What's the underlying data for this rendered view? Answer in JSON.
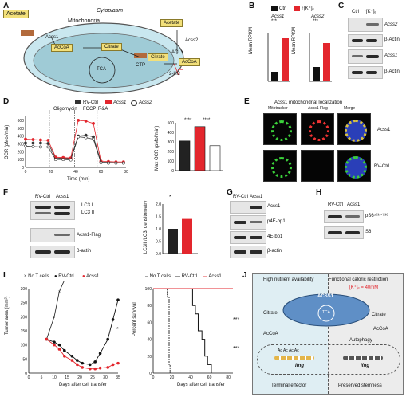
{
  "panels": {
    "A": {
      "label": "A",
      "cytoplasm": "Cytoplasm",
      "mitochondria": "Mitochondria",
      "acetate_out": "Acetate",
      "acss1": "Acss1",
      "accoa_mito": "AcCoA",
      "citrate_mito": "Citrate",
      "tca": "TCA",
      "ctp": "CTP",
      "acetate_cyto": "Acetate",
      "acss2": "Acss2",
      "citrate_cyto": "Citrate",
      "acly": "ACLY",
      "accoa_cyto": "AcCoA",
      "hc": "2-HC"
    },
    "B": {
      "label": "B",
      "legend_ctrl": "Ctrl",
      "legend_k": "↑[K⁺]ₑ",
      "sig1": "***",
      "sig2": "***",
      "ylabel": "Mean RPKM",
      "acss1": "Acss1",
      "acss2": "Acss2"
    },
    "C": {
      "label": "C",
      "col_ctrl": "Ctrl",
      "col_k": "↑[K⁺]ₑ",
      "rows": [
        "Acss2",
        "β-Actin",
        "Acss1",
        "β-Actin"
      ]
    },
    "D": {
      "label": "D",
      "legend": [
        "RV-Ctrl",
        "Acss1",
        "Acss2"
      ],
      "oligomycin": "Oligomycin",
      "fccp": "FCCP",
      "ra": "R&A",
      "ylabel": "OCR (pMol/min)",
      "xlabel": "Time (min)",
      "bar_ylabel": "Max OCR (pMol/min)",
      "sig1": "****",
      "sig2": "****",
      "yticks": [
        "0",
        "100",
        "200",
        "300",
        "400",
        "500",
        "600"
      ],
      "xticks": [
        "0",
        "20",
        "40",
        "60",
        "80"
      ],
      "bar_yticks": [
        "0",
        "100",
        "200",
        "300",
        "400",
        "500"
      ]
    },
    "E": {
      "label": "E",
      "title": "Acss1 mitochondrial localization",
      "col1": "Mitotracker",
      "col2": "Acss1 Flag",
      "col3": "Merge",
      "row1": "Acss1",
      "row2": "RV-Ctrl"
    },
    "F": {
      "label": "F",
      "col1": "RV-Ctrl",
      "col2": "Acss1",
      "lc3i": "LC3 I",
      "lc3ii": "LC3 II",
      "flag": "Acss1-Flag",
      "actin": "β-actin",
      "ylabel": "LC3II /LC3I densitometry",
      "sig": "*",
      "yticks": [
        "0.0",
        "0.5",
        "1.0",
        "1.5",
        "2.0"
      ]
    },
    "G": {
      "label": "G",
      "col1": "RV-Ctrl",
      "col2": "Acss1",
      "rows": [
        "Acss1",
        "p4E-bp1",
        "4E-bp1",
        "β-actin"
      ]
    },
    "H": {
      "label": "H",
      "col1": "RV-Ctrl",
      "col2": "Acss1",
      "rows": [
        "pS6⁵²³⁵ᐟ²³⁶",
        "S6"
      ]
    },
    "I": {
      "label": "I",
      "legend": [
        "No T cells",
        "RV-Ctrl",
        "Acss1"
      ],
      "ylabel": "Tumor area (mm²)",
      "xlabel": "Days after cell transfer",
      "yticks": [
        "0",
        "50",
        "100",
        "150",
        "200",
        "250",
        "300"
      ],
      "xticks": [
        "0",
        "5",
        "10",
        "15",
        "20",
        "25",
        "30",
        "35"
      ],
      "sig": "*",
      "surv_legend": [
        "No T cells",
        "RV-Ctrl",
        "Acss1"
      ],
      "surv_ylabel": "Percent survival",
      "surv_xlabel": "Days after cell transfer",
      "surv_yticks": [
        "0",
        "20",
        "40",
        "60",
        "80",
        "100"
      ],
      "surv_xticks": [
        "0",
        "20",
        "40",
        "60",
        "80"
      ],
      "surv_sig1": "***",
      "surv_sig2": "***"
    },
    "J": {
      "label": "J",
      "left_title": "High nutrient availability",
      "right_title": "Functional caloric restriction",
      "k_label": "[K⁺]ₑ = 40mM",
      "acss1": "ACSS1",
      "tca": "TCA",
      "citrate_l": "Citrate",
      "accoa_l": "AcCoA",
      "citrate_r": "Citrate",
      "accoa_r": "AcCoA",
      "autophagy": "Autophagy",
      "ac": "Ac",
      "ifng_l": "Ifng",
      "ifng_r": "Ifng",
      "bottom_left": "Terminal effector",
      "bottom_right": "Preserved stemness"
    }
  },
  "chart_data": [
    {
      "panel": "B-left",
      "type": "bar",
      "categories": [
        "Ctrl",
        "↑[K⁺]ₑ"
      ],
      "series": [
        {
          "name": "Acss1",
          "values": [
            2,
            9
          ]
        }
      ],
      "ylabel": "Mean RPKM",
      "colors": [
        "#111111",
        "#e3262d"
      ]
    },
    {
      "panel": "B-right",
      "type": "bar",
      "categories": [
        "Ctrl",
        "↑[K⁺]ₑ"
      ],
      "series": [
        {
          "name": "Acss2",
          "values": [
            3,
            8
          ]
        }
      ],
      "ylabel": "Mean RPKM",
      "colors": [
        "#111111",
        "#e3262d"
      ]
    },
    {
      "panel": "D-left",
      "type": "line",
      "x": [
        0,
        6,
        12,
        18,
        24,
        30,
        36,
        42,
        48,
        54,
        60,
        66,
        72,
        78
      ],
      "series": [
        {
          "name": "RV-Ctrl",
          "values": [
            310,
            310,
            310,
            305,
            120,
            115,
            115,
            400,
            410,
            390,
            70,
            65,
            60,
            60
          ]
        },
        {
          "name": "Acss1",
          "values": [
            360,
            355,
            350,
            345,
            130,
            125,
            120,
            600,
            590,
            560,
            80,
            75,
            70,
            70
          ]
        },
        {
          "name": "Acss2",
          "values": [
            270,
            265,
            260,
            260,
            100,
            100,
            95,
            390,
            380,
            360,
            60,
            55,
            55,
            55
          ]
        }
      ],
      "xlabel": "Time (min)",
      "ylabel": "OCR (pMol/min)",
      "ylim": [
        0,
        650
      ]
    },
    {
      "panel": "D-right",
      "type": "bar",
      "categories": [
        "RV-Ctrl",
        "Acss1",
        "Acss2"
      ],
      "values": [
        310,
        460,
        260
      ],
      "ylabel": "Max OCR (pMol/min)",
      "ylim": [
        0,
        500
      ],
      "colors": [
        "#222222",
        "#e3262d",
        "#ffffff"
      ]
    },
    {
      "panel": "F-right",
      "type": "bar",
      "categories": [
        "RV-Ctrl",
        "Acss1"
      ],
      "values": [
        1.0,
        1.4
      ],
      "ylabel": "LC3II /LC3I densitometry",
      "ylim": [
        0,
        2.0
      ],
      "colors": [
        "#222222",
        "#e3262d"
      ]
    },
    {
      "panel": "I-left",
      "type": "line",
      "x": [
        7,
        10,
        12,
        14,
        17,
        19,
        21,
        24,
        26,
        28,
        31,
        33,
        35
      ],
      "series": [
        {
          "name": "No T cells",
          "values": [
            120,
            200,
            290,
            330,
            null,
            null,
            null,
            null,
            null,
            null,
            null,
            null,
            null
          ]
        },
        {
          "name": "RV-Ctrl",
          "values": [
            120,
            110,
            100,
            80,
            60,
            45,
            35,
            30,
            40,
            70,
            120,
            190,
            260
          ]
        },
        {
          "name": "Acss1",
          "values": [
            120,
            100,
            85,
            60,
            45,
            30,
            20,
            15,
            15,
            18,
            20,
            30,
            35
          ]
        }
      ],
      "xlabel": "Days after cell transfer",
      "ylabel": "Tumor area (mm²)",
      "ylim": [
        0,
        300
      ]
    },
    {
      "panel": "I-right",
      "type": "line",
      "series": [
        {
          "name": "No T cells",
          "x": [
            0,
            14,
            15,
            17,
            18
          ],
          "values": [
            100,
            100,
            90,
            10,
            0
          ]
        },
        {
          "name": "RV-Ctrl",
          "x": [
            0,
            40,
            42,
            45,
            48,
            52,
            55,
            58,
            62
          ],
          "values": [
            100,
            100,
            80,
            70,
            50,
            40,
            20,
            10,
            0
          ]
        },
        {
          "name": "Acss1",
          "x": [
            0,
            85
          ],
          "values": [
            100,
            100
          ]
        }
      ],
      "xlabel": "Days after cell transfer",
      "ylabel": "Percent survival",
      "ylim": [
        0,
        100
      ]
    }
  ]
}
